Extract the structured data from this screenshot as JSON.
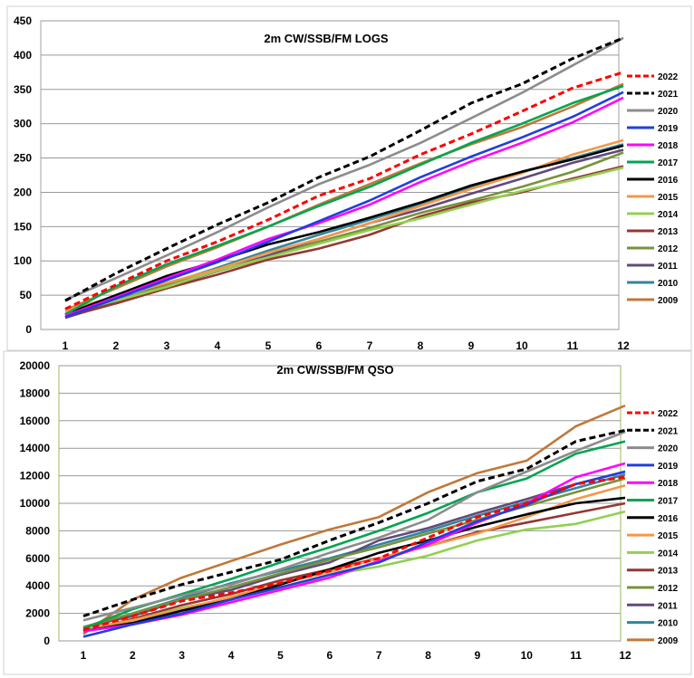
{
  "chart_data": [
    {
      "type": "line",
      "title": "2m CW/SSB/FM LOGS",
      "xlabel": "",
      "ylabel": "",
      "x": [
        1,
        2,
        3,
        4,
        5,
        6,
        7,
        8,
        9,
        10,
        11,
        12
      ],
      "xticks": [
        "1",
        "2",
        "3",
        "4",
        "5",
        "6",
        "7",
        "8",
        "9",
        "10",
        "11",
        "12"
      ],
      "ylim": [
        0,
        450
      ],
      "yticks": [
        "0",
        "50",
        "100",
        "150",
        "200",
        "250",
        "300",
        "350",
        "400",
        "450"
      ],
      "grid": "horizontal",
      "legend_position": "right",
      "series": [
        {
          "name": "2022",
          "color": "#ff0000",
          "dashed": true,
          "values": [
            30,
            65,
            100,
            128,
            160,
            195,
            220,
            255,
            285,
            318,
            352,
            375
          ]
        },
        {
          "name": "2021",
          "color": "#000000",
          "dashed": true,
          "values": [
            42,
            82,
            118,
            153,
            185,
            222,
            252,
            290,
            330,
            358,
            395,
            425
          ]
        },
        {
          "name": "2020",
          "color": "#8c8c8c",
          "dashed": false,
          "values": [
            43,
            75,
            108,
            142,
            178,
            212,
            240,
            272,
            308,
            345,
            385,
            425
          ]
        },
        {
          "name": "2019",
          "color": "#1f3fdd",
          "dashed": false,
          "values": [
            18,
            45,
            72,
            98,
            128,
            158,
            188,
            222,
            252,
            280,
            310,
            346
          ]
        },
        {
          "name": "2018",
          "color": "#ff00ff",
          "dashed": false,
          "values": [
            20,
            47,
            75,
            102,
            132,
            155,
            182,
            215,
            245,
            272,
            302,
            338
          ]
        },
        {
          "name": "2017",
          "color": "#00a550",
          "dashed": false,
          "values": [
            22,
            63,
            95,
            122,
            150,
            180,
            208,
            240,
            272,
            300,
            330,
            355
          ]
        },
        {
          "name": "2016",
          "color": "#000000",
          "dashed": false,
          "values": [
            22,
            50,
            78,
            100,
            124,
            142,
            163,
            185,
            210,
            230,
            248,
            268
          ]
        },
        {
          "name": "2015",
          "color": "#f79646",
          "dashed": false,
          "values": [
            28,
            48,
            68,
            88,
            112,
            132,
            155,
            180,
            205,
            228,
            255,
            276
          ]
        },
        {
          "name": "2014",
          "color": "#92d050",
          "dashed": false,
          "values": [
            25,
            42,
            62,
            86,
            105,
            125,
            145,
            162,
            182,
            202,
            218,
            236
          ]
        },
        {
          "name": "2013",
          "color": "#953735",
          "dashed": false,
          "values": [
            18,
            38,
            60,
            80,
            102,
            118,
            138,
            165,
            185,
            200,
            220,
            238
          ]
        },
        {
          "name": "2012",
          "color": "#77933c",
          "dashed": false,
          "values": [
            22,
            42,
            65,
            85,
            105,
            128,
            148,
            170,
            188,
            208,
            230,
            258
          ]
        },
        {
          "name": "2011",
          "color": "#604a7b",
          "dashed": false,
          "values": [
            17,
            40,
            62,
            85,
            108,
            132,
            155,
            175,
            198,
            220,
            243,
            262
          ]
        },
        {
          "name": "2010",
          "color": "#31859c",
          "dashed": false,
          "values": [
            20,
            42,
            66,
            90,
            115,
            138,
            160,
            183,
            207,
            230,
            250,
            270
          ]
        },
        {
          "name": "2009",
          "color": "#c0783a",
          "dashed": false,
          "values": [
            28,
            60,
            92,
            120,
            150,
            182,
            212,
            242,
            270,
            295,
            325,
            358
          ]
        }
      ]
    },
    {
      "type": "line",
      "title": "2m CW/SSB/FM QSO",
      "xlabel": "",
      "ylabel": "",
      "x": [
        1,
        2,
        3,
        4,
        5,
        6,
        7,
        8,
        9,
        10,
        11,
        12
      ],
      "xticks": [
        "1",
        "2",
        "3",
        "4",
        "5",
        "6",
        "7",
        "8",
        "9",
        "10",
        "11",
        "12"
      ],
      "ylim": [
        0,
        20000
      ],
      "yticks": [
        "0",
        "2000",
        "4000",
        "6000",
        "8000",
        "10000",
        "12000",
        "14000",
        "16000",
        "18000",
        "20000"
      ],
      "grid": "horizontal",
      "legend_position": "right",
      "series": [
        {
          "name": "2022",
          "color": "#ff0000",
          "dashed": true,
          "values": [
            800,
            1800,
            2900,
            3500,
            4200,
            5100,
            6000,
            7500,
            9000,
            10000,
            11400,
            11900
          ]
        },
        {
          "name": "2021",
          "color": "#000000",
          "dashed": true,
          "values": [
            1800,
            3000,
            4100,
            5000,
            5900,
            7300,
            8600,
            10000,
            11600,
            12500,
            14500,
            15300
          ]
        },
        {
          "name": "2020",
          "color": "#8c8c8c",
          "dashed": false,
          "values": [
            1500,
            2400,
            3300,
            4100,
            5200,
            6400,
            7500,
            8800,
            10800,
            12300,
            13800,
            15200
          ]
        },
        {
          "name": "2019",
          "color": "#1f3fdd",
          "dashed": false,
          "values": [
            300,
            1200,
            2000,
            3000,
            3900,
            4800,
            5700,
            7200,
            8700,
            9900,
            11400,
            12300
          ]
        },
        {
          "name": "2018",
          "color": "#ff00ff",
          "dashed": false,
          "values": [
            700,
            1200,
            1900,
            2800,
            3700,
            4600,
            5800,
            7000,
            8600,
            10000,
            11900,
            12900
          ]
        },
        {
          "name": "2017",
          "color": "#00a550",
          "dashed": false,
          "values": [
            900,
            2300,
            3400,
            4500,
            5700,
            6800,
            8000,
            9300,
            10800,
            11800,
            13600,
            14500
          ]
        },
        {
          "name": "2016",
          "color": "#000000",
          "dashed": false,
          "values": [
            700,
            1300,
            2200,
            3000,
            4100,
            5200,
            6400,
            7300,
            8300,
            9200,
            10000,
            10400
          ]
        },
        {
          "name": "2015",
          "color": "#f79646",
          "dashed": false,
          "values": [
            900,
            1500,
            2300,
            3200,
            4200,
            5000,
            6000,
            6900,
            7800,
            9000,
            10300,
            11300
          ]
        },
        {
          "name": "2014",
          "color": "#92d050",
          "dashed": false,
          "values": [
            800,
            1500,
            2400,
            3100,
            3800,
            4800,
            5400,
            6200,
            7300,
            8100,
            8500,
            9400
          ]
        },
        {
          "name": "2013",
          "color": "#953735",
          "dashed": false,
          "values": [
            700,
            1600,
            2600,
            3400,
            4400,
            5200,
            6000,
            6900,
            7900,
            8600,
            9300,
            10000
          ]
        },
        {
          "name": "2012",
          "color": "#77933c",
          "dashed": false,
          "values": [
            1000,
            2000,
            3000,
            3900,
            4900,
            5900,
            6800,
            7800,
            8800,
            9800,
            10800,
            11800
          ]
        },
        {
          "name": "2011",
          "color": "#604a7b",
          "dashed": false,
          "values": [
            1000,
            1800,
            3000,
            3700,
            4800,
            5700,
            7300,
            8200,
            9300,
            10300,
            11400,
            12300
          ]
        },
        {
          "name": "2010",
          "color": "#31859c",
          "dashed": false,
          "values": [
            800,
            2000,
            3100,
            4200,
            5100,
            6000,
            7000,
            8000,
            9100,
            10100,
            11100,
            12100
          ]
        },
        {
          "name": "2009",
          "color": "#c0783a",
          "dashed": false,
          "values": [
            500,
            3000,
            4600,
            5800,
            7000,
            8100,
            9000,
            10800,
            12200,
            13100,
            15600,
            17100
          ]
        }
      ]
    }
  ]
}
